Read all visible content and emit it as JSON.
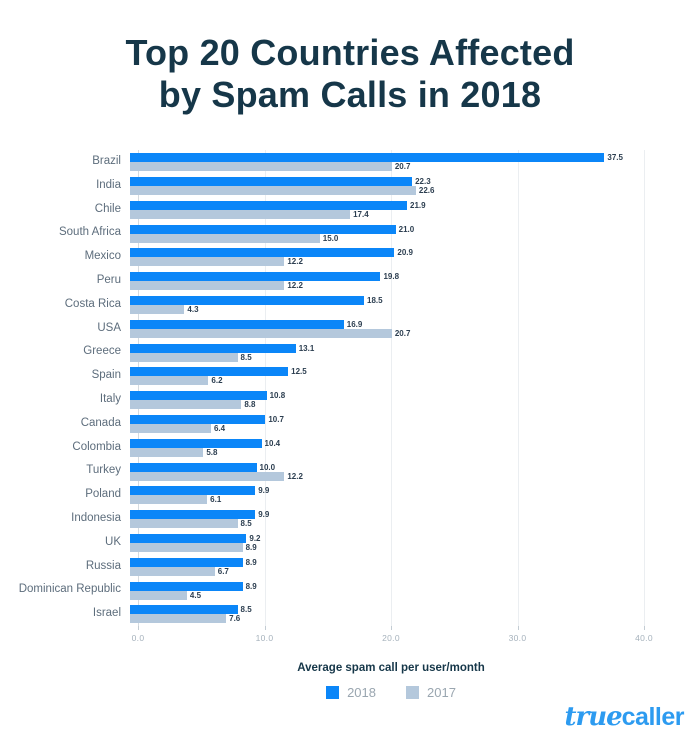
{
  "title": {
    "line1": "Top 20 Countries Affected",
    "line2": "by Spam Calls in 2018"
  },
  "chart_data": {
    "type": "bar",
    "orientation": "horizontal",
    "title": "Top 20 Countries Affected by Spam Calls in 2018",
    "xlabel": "Average spam call per user/month",
    "xlim": [
      0,
      40
    ],
    "x_ticks": [
      "0.0",
      "10.0",
      "20.0",
      "30.0",
      "40.0"
    ],
    "grid": "vertical",
    "legend_position": "bottom",
    "categories": [
      "Brazil",
      "India",
      "Chile",
      "South Africa",
      "Mexico",
      "Peru",
      "Costa Rica",
      "USA",
      "Greece",
      "Spain",
      "Italy",
      "Canada",
      "Colombia",
      "Turkey",
      "Poland",
      "Indonesia",
      "UK",
      "Russia",
      "Dominican Republic",
      "Israel"
    ],
    "series": [
      {
        "name": "2018",
        "color": "#0b86f8",
        "values": [
          37.5,
          22.3,
          21.9,
          21.0,
          20.9,
          19.8,
          18.5,
          16.9,
          13.1,
          12.5,
          10.8,
          10.7,
          10.4,
          10.0,
          9.9,
          9.9,
          9.2,
          8.9,
          8.9,
          8.5
        ]
      },
      {
        "name": "2017",
        "color": "#b4c8dc",
        "values": [
          20.7,
          22.6,
          17.4,
          15.0,
          12.2,
          12.2,
          4.3,
          20.7,
          8.5,
          6.2,
          8.8,
          6.4,
          5.8,
          12.2,
          6.1,
          8.5,
          8.9,
          6.7,
          4.5,
          7.6
        ]
      }
    ]
  },
  "footer": {
    "logo_true": "true",
    "logo_caller": "caller"
  },
  "colors": {
    "title": "#163749",
    "bar_2018": "#0b86f8",
    "bar_2017": "#b4c8dc",
    "value_label": "#2c3e50",
    "country_label": "#5d6d7c",
    "tick_label": "#a6b2bc",
    "legend_label": "#9aa6b0",
    "gridline": "#ebeef1",
    "logo_blue": "#2d9bf0"
  }
}
